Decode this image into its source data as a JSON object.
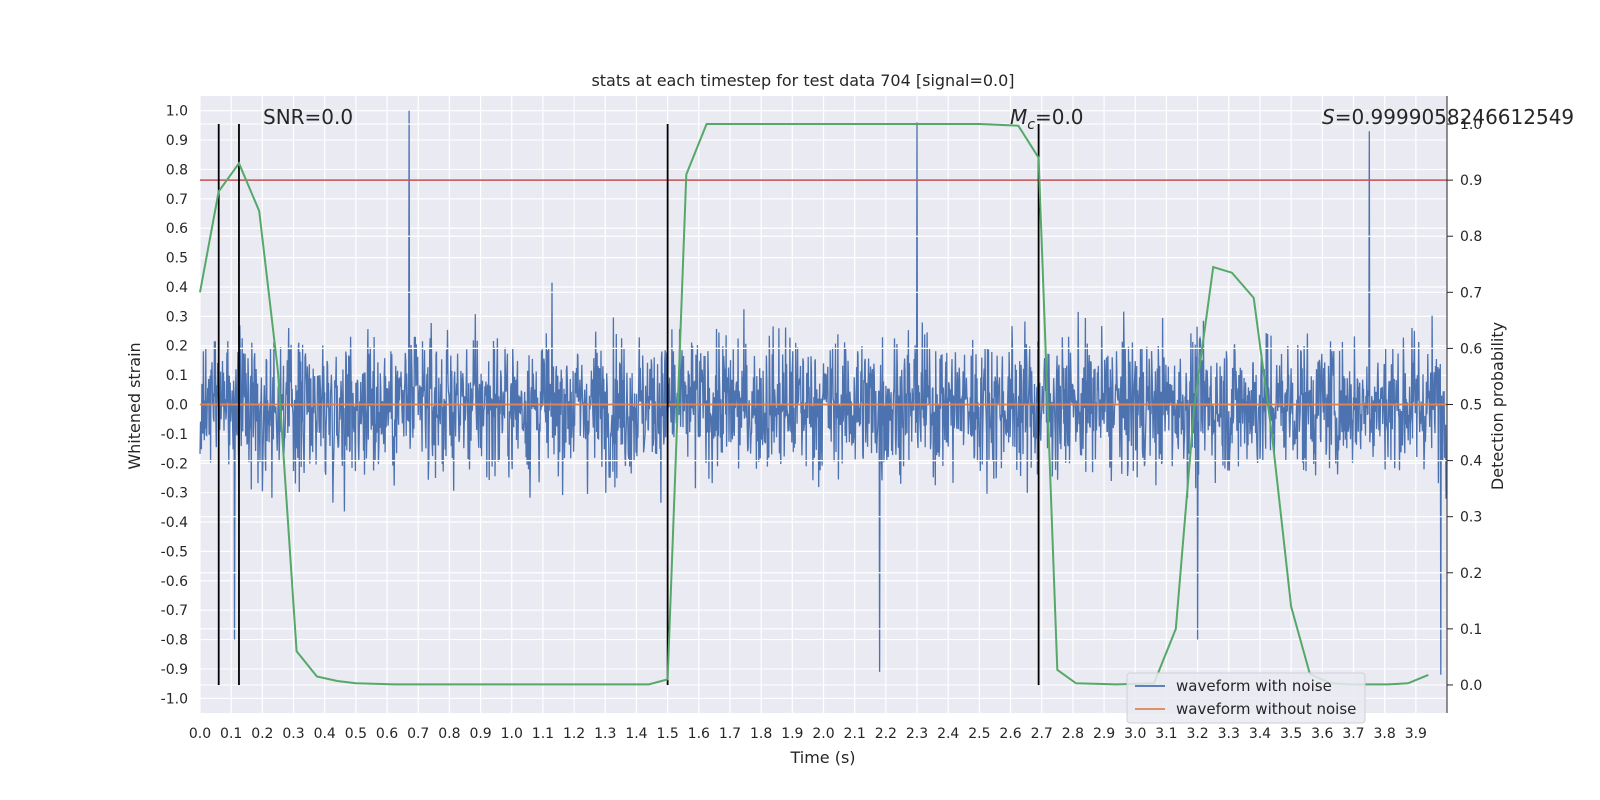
{
  "chart_data": {
    "type": "line",
    "title": "stats at each timestep for test data 704 [signal=0.0]",
    "xlabel": "Time (s)",
    "ylabel": "Whitened strain",
    "y2label": "Detection probability",
    "xlim": [
      0.0,
      4.0
    ],
    "ylim": [
      -1.05,
      1.05
    ],
    "y2lim": [
      -0.05,
      1.05
    ],
    "xticks": [
      "0.0",
      "0.1",
      "0.2",
      "0.3",
      "0.4",
      "0.5",
      "0.6",
      "0.7",
      "0.8",
      "0.9",
      "1.0",
      "1.1",
      "1.2",
      "1.3",
      "1.4",
      "1.5",
      "1.6",
      "1.7",
      "1.8",
      "1.9",
      "2.0",
      "2.1",
      "2.2",
      "2.3",
      "2.4",
      "2.5",
      "2.6",
      "2.7",
      "2.8",
      "2.9",
      "3.0",
      "3.1",
      "3.2",
      "3.3",
      "3.4",
      "3.5",
      "3.6",
      "3.7",
      "3.8",
      "3.9"
    ],
    "yticks": [
      "1.0",
      "0.9",
      "0.8",
      "0.7",
      "0.6",
      "0.5",
      "0.4",
      "0.3",
      "0.2",
      "0.1",
      "0.0",
      "-0.1",
      "-0.2",
      "-0.3",
      "-0.4",
      "-0.5",
      "-0.6",
      "-0.7",
      "-0.8",
      "-0.9",
      "-1.0"
    ],
    "y2ticks": [
      "1.0",
      "0.9",
      "0.8",
      "0.7",
      "0.6",
      "0.5",
      "0.4",
      "0.3",
      "0.2",
      "0.1",
      "0.0"
    ],
    "annotations": {
      "snr": "SNR=0.0",
      "mc_symbol": "M",
      "mc_sub": "c",
      "mc_value": "=0.0",
      "s_symbol": "S",
      "s_value": "=0.9999058246612549"
    },
    "grid": true,
    "legend_placement": "lower-right",
    "legend": [
      "waveform with noise",
      "waveform without noise"
    ],
    "colors": {
      "noise": "#4c72b0",
      "clean": "#dd8452",
      "probability": "#55a868",
      "threshold": "#c44e52",
      "markers": "#000000",
      "background": "#eaeaf2",
      "grid": "#ffffff"
    },
    "series": [
      {
        "name": "waveform with noise",
        "axis": "left",
        "description_values": "dense noise, amplitude mostly within ±0.6 with spikes to ±1.0",
        "peaks": [
          [
            0.67,
            1.0
          ],
          [
            2.3,
            0.96
          ],
          [
            3.75,
            0.93
          ],
          [
            2.18,
            -0.91
          ],
          [
            3.98,
            -0.92
          ],
          [
            0.11,
            -0.8
          ],
          [
            3.2,
            -0.8
          ]
        ]
      },
      {
        "name": "waveform without noise",
        "axis": "left",
        "x": [
          0.0,
          4.0
        ],
        "y": [
          0.0,
          0.0
        ]
      },
      {
        "axis": "right",
        "x": [
          0.0,
          0.06,
          0.125,
          0.19,
          0.25,
          0.31,
          0.375,
          0.44,
          0.5,
          0.625,
          0.75,
          1.0,
          1.25,
          1.44,
          1.5,
          1.56,
          1.625,
          1.75,
          2.0,
          2.25,
          2.5,
          2.625,
          2.69,
          2.75,
          2.81,
          2.94,
          3.06,
          3.13,
          3.19,
          3.25,
          3.31,
          3.38,
          3.44,
          3.5,
          3.56,
          3.625,
          3.69,
          3.75,
          3.81,
          3.875,
          3.94
        ],
        "y": [
          0.7,
          0.88,
          0.93,
          0.845,
          0.56,
          0.06,
          0.015,
          0.007,
          0.003,
          0.001,
          0.001,
          0.001,
          0.001,
          0.001,
          0.01,
          0.91,
          1.0,
          1.0,
          1.0,
          1.0,
          1.0,
          0.997,
          0.94,
          0.027,
          0.003,
          0.001,
          0.003,
          0.1,
          0.5,
          0.745,
          0.735,
          0.69,
          0.44,
          0.14,
          0.02,
          0.003,
          0.001,
          0.001,
          0.001,
          0.003,
          0.018
        ]
      }
    ],
    "threshold_line": {
      "axis": "right",
      "value": 0.9
    },
    "event_markers": {
      "x": [
        0.06,
        0.125,
        1.5,
        2.69
      ],
      "y_range_right": [
        0.0,
        1.0
      ]
    },
    "random_seed": 704
  }
}
